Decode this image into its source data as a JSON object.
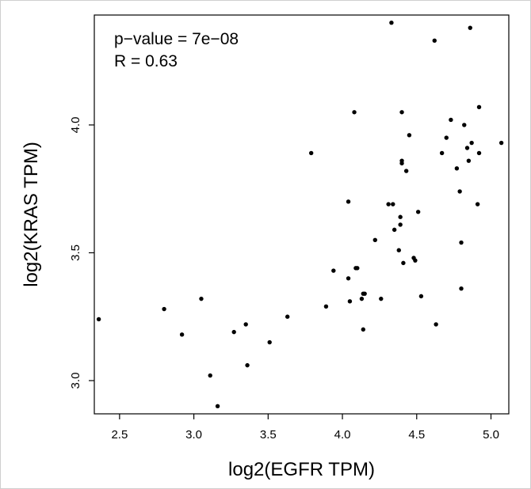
{
  "chart_data": {
    "type": "scatter",
    "title": "",
    "xlabel": "log2(EGFR TPM)",
    "ylabel": "log2(KRAS TPM)",
    "xlim": [
      2.33,
      5.12
    ],
    "ylim": [
      2.87,
      4.43
    ],
    "xticks": [
      "2.5",
      "3.0",
      "3.5",
      "4.0",
      "4.5",
      "5.0"
    ],
    "yticks": [
      "3.0",
      "3.5",
      "4.0"
    ],
    "annotations": [
      "p−value = 7e−08",
      "R = 0.63"
    ],
    "grid": false,
    "legend": "none",
    "point_color": "#000000",
    "x": [
      2.36,
      2.8,
      2.92,
      3.05,
      3.11,
      3.16,
      3.27,
      3.35,
      3.36,
      3.51,
      3.63,
      3.79,
      3.89,
      3.94,
      4.04,
      4.04,
      4.05,
      4.08,
      4.09,
      4.1,
      4.13,
      4.14,
      4.14,
      4.15,
      4.22,
      4.26,
      4.31,
      4.33,
      4.34,
      4.35,
      4.38,
      4.39,
      4.39,
      4.4,
      4.4,
      4.4,
      4.41,
      4.43,
      4.45,
      4.48,
      4.49,
      4.51,
      4.53,
      4.62,
      4.63,
      4.67,
      4.7,
      4.73,
      4.77,
      4.79,
      4.8,
      4.8,
      4.82,
      4.84,
      4.85,
      4.86,
      4.87,
      4.91,
      4.92,
      4.92,
      5.07
    ],
    "y": [
      3.24,
      3.28,
      3.18,
      3.32,
      3.02,
      2.9,
      3.19,
      3.22,
      3.06,
      3.15,
      3.25,
      3.89,
      3.29,
      3.43,
      3.7,
      3.4,
      3.31,
      4.05,
      3.44,
      3.44,
      3.32,
      3.2,
      3.34,
      3.34,
      3.55,
      3.32,
      3.69,
      4.4,
      3.69,
      3.59,
      3.51,
      3.64,
      3.61,
      4.05,
      3.86,
      3.85,
      3.46,
      3.82,
      3.96,
      3.48,
      3.47,
      3.66,
      3.33,
      4.33,
      3.22,
      3.89,
      3.95,
      4.02,
      3.83,
      3.74,
      3.54,
      3.36,
      4.0,
      3.91,
      3.86,
      4.38,
      3.93,
      3.69,
      3.89,
      4.07,
      3.93
    ]
  }
}
